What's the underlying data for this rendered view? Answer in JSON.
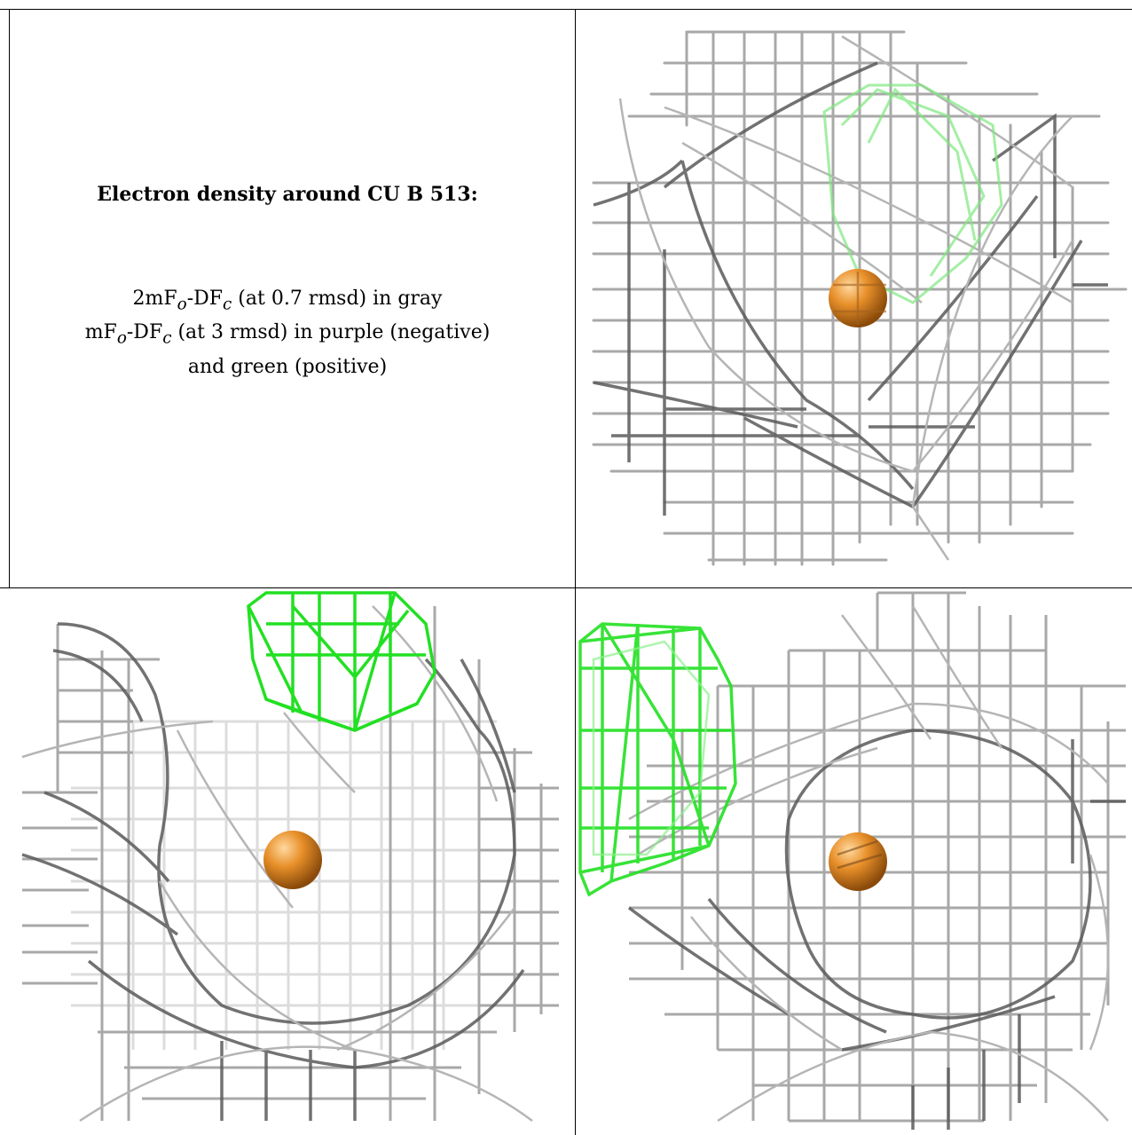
{
  "caption": {
    "title": "Electron density around CU B 513:",
    "line1_prefix": "2mF",
    "line1_sub1": "o",
    "line1_mid": "-DF",
    "line1_sub2": "c",
    "line1_suffix": " (at 0.7 rmsd) in gray",
    "line2_prefix": "mF",
    "line2_sub1": "o",
    "line2_mid": "-DF",
    "line2_sub2": "c",
    "line2_suffix": " (at 3 rmsd) in purple (negative)",
    "line3": "and green (positive)"
  },
  "colors": {
    "mesh_gray": "#9a9a9a",
    "mesh_dark": "#555555",
    "mesh_green": "#22e022",
    "copper": "#e8902a"
  },
  "panels": [
    {
      "name": "view-top-right",
      "atom": "copper-atom"
    },
    {
      "name": "view-bottom-left",
      "atom": "copper-atom"
    },
    {
      "name": "view-bottom-right",
      "atom": "copper-atom"
    }
  ]
}
